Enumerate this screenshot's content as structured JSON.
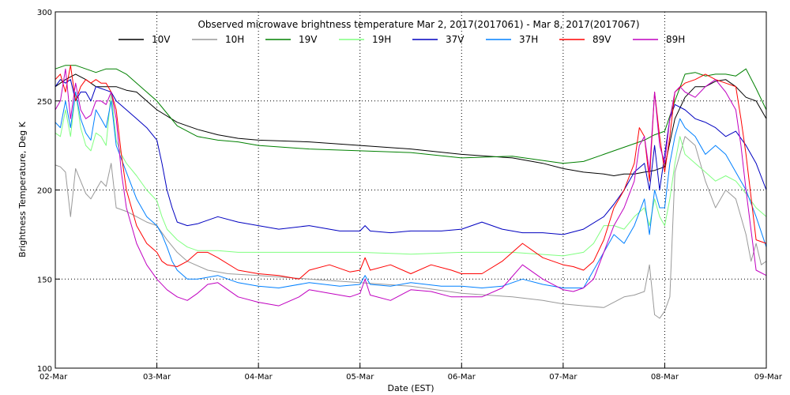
{
  "chart_data": {
    "type": "line",
    "title": "Observed microwave brightness temperature Mar  2, 2017(2017061) - Mar  8, 2017(2017067)",
    "xlabel": "Date (EST)",
    "ylabel": "Brightness Temperature, Deg K",
    "xlim": [
      0,
      7
    ],
    "ylim": [
      100,
      300
    ],
    "x_ticks": [
      {
        "value": 0,
        "label": "02-Mar"
      },
      {
        "value": 1,
        "label": "03-Mar"
      },
      {
        "value": 2,
        "label": "04-Mar"
      },
      {
        "value": 3,
        "label": "05-Mar"
      },
      {
        "value": 4,
        "label": "06-Mar"
      },
      {
        "value": 5,
        "label": "07-Mar"
      },
      {
        "value": 6,
        "label": "08-Mar"
      },
      {
        "value": 7,
        "label": "09-Mar"
      }
    ],
    "y_ticks": [
      {
        "value": 100,
        "label": "100"
      },
      {
        "value": 150,
        "label": "150"
      },
      {
        "value": 200,
        "label": "200"
      },
      {
        "value": 250,
        "label": "250"
      },
      {
        "value": 300,
        "label": "300"
      }
    ],
    "grid": "dotted",
    "legend_position": "top",
    "series": [
      {
        "name": "10V",
        "color": "#000000",
        "x": [
          0,
          0.1,
          0.2,
          0.3,
          0.4,
          0.5,
          0.6,
          0.7,
          0.8,
          0.9,
          1,
          1.2,
          1.4,
          1.6,
          1.8,
          2,
          2.5,
          3,
          3.5,
          4,
          4.5,
          4.8,
          5,
          5.2,
          5.4,
          5.5,
          5.6,
          5.7,
          5.8,
          5.9,
          6,
          6.1,
          6.2,
          6.3,
          6.4,
          6.5,
          6.6,
          6.7,
          6.8,
          6.9,
          7
        ],
        "y": [
          258,
          262,
          265,
          262,
          258,
          258,
          258,
          256,
          255,
          250,
          245,
          238,
          234,
          231,
          229,
          228,
          227,
          225,
          223,
          220,
          218,
          215,
          212,
          210,
          209,
          208,
          209,
          209,
          210,
          211,
          213,
          240,
          252,
          258,
          258,
          261,
          262,
          258,
          252,
          250,
          240
        ]
      },
      {
        "name": "10H",
        "color": "#999999",
        "x": [
          0,
          0.05,
          0.1,
          0.15,
          0.2,
          0.25,
          0.3,
          0.35,
          0.4,
          0.45,
          0.5,
          0.55,
          0.6,
          0.7,
          0.8,
          0.9,
          1,
          1.1,
          1.2,
          1.3,
          1.5,
          1.7,
          2,
          2.5,
          3,
          3.5,
          4,
          4.5,
          4.8,
          5,
          5.2,
          5.4,
          5.5,
          5.6,
          5.7,
          5.8,
          5.85,
          5.9,
          5.95,
          6,
          6.05,
          6.1,
          6.2,
          6.3,
          6.4,
          6.5,
          6.6,
          6.7,
          6.8,
          6.85,
          6.9,
          6.95,
          7
        ],
        "y": [
          214,
          213,
          210,
          185,
          212,
          205,
          198,
          195,
          200,
          205,
          202,
          215,
          190,
          188,
          185,
          182,
          180,
          172,
          165,
          160,
          155,
          153,
          152,
          150,
          148,
          146,
          142,
          140,
          138,
          136,
          135,
          134,
          137,
          140,
          141,
          143,
          158,
          130,
          128,
          132,
          140,
          210,
          230,
          225,
          205,
          190,
          200,
          195,
          175,
          160,
          170,
          158,
          160
        ]
      },
      {
        "name": "19V",
        "color": "#008000",
        "x": [
          0,
          0.1,
          0.2,
          0.3,
          0.4,
          0.5,
          0.6,
          0.7,
          0.8,
          0.9,
          1,
          1.1,
          1.2,
          1.4,
          1.6,
          1.8,
          2,
          2.5,
          3,
          3.5,
          4,
          4.5,
          5,
          5.2,
          5.4,
          5.5,
          5.6,
          5.7,
          5.8,
          5.9,
          6,
          6.1,
          6.2,
          6.3,
          6.4,
          6.5,
          6.6,
          6.7,
          6.8,
          6.9,
          7
        ],
        "y": [
          268,
          270,
          270,
          268,
          266,
          268,
          268,
          265,
          260,
          255,
          250,
          243,
          236,
          230,
          228,
          227,
          225,
          223,
          222,
          221,
          218,
          219,
          215,
          216,
          220,
          222,
          224,
          226,
          228,
          231,
          233,
          250,
          265,
          266,
          264,
          265,
          265,
          264,
          268,
          257,
          245
        ]
      },
      {
        "name": "19H",
        "color": "#80ff80",
        "x": [
          0,
          0.05,
          0.1,
          0.15,
          0.2,
          0.25,
          0.3,
          0.35,
          0.4,
          0.45,
          0.5,
          0.55,
          0.6,
          0.65,
          0.7,
          0.8,
          0.9,
          1,
          1.05,
          1.1,
          1.15,
          1.2,
          1.3,
          1.4,
          1.6,
          1.8,
          2,
          2.5,
          3,
          3.5,
          4,
          4.5,
          5,
          5.2,
          5.3,
          5.4,
          5.5,
          5.6,
          5.7,
          5.8,
          5.85,
          5.9,
          5.95,
          6,
          6.05,
          6.1,
          6.15,
          6.2,
          6.3,
          6.4,
          6.5,
          6.6,
          6.7,
          6.8,
          6.9,
          7
        ],
        "y": [
          232,
          230,
          245,
          230,
          255,
          235,
          225,
          222,
          232,
          230,
          225,
          255,
          228,
          220,
          215,
          208,
          200,
          194,
          185,
          178,
          175,
          172,
          168,
          166,
          166,
          165,
          165,
          165,
          165,
          164,
          165,
          165,
          163,
          165,
          170,
          180,
          180,
          178,
          185,
          190,
          180,
          195,
          185,
          180,
          195,
          215,
          230,
          220,
          215,
          210,
          205,
          208,
          205,
          198,
          190,
          185
        ]
      },
      {
        "name": "37V",
        "color": "#0000c0",
        "x": [
          0,
          0.05,
          0.1,
          0.15,
          0.2,
          0.25,
          0.3,
          0.35,
          0.4,
          0.45,
          0.5,
          0.55,
          0.6,
          0.7,
          0.8,
          0.9,
          1,
          1.05,
          1.1,
          1.15,
          1.2,
          1.3,
          1.4,
          1.6,
          1.8,
          2,
          2.2,
          2.5,
          2.8,
          3,
          3.05,
          3.1,
          3.3,
          3.5,
          3.8,
          4,
          4.2,
          4.4,
          4.6,
          4.8,
          5,
          5.2,
          5.4,
          5.5,
          5.6,
          5.7,
          5.8,
          5.85,
          5.9,
          5.95,
          6,
          6.05,
          6.1,
          6.2,
          6.3,
          6.4,
          6.5,
          6.6,
          6.7,
          6.8,
          6.9,
          7
        ],
        "y": [
          258,
          262,
          260,
          262,
          250,
          255,
          255,
          250,
          258,
          257,
          256,
          255,
          250,
          245,
          240,
          235,
          228,
          215,
          200,
          190,
          182,
          180,
          181,
          185,
          182,
          180,
          178,
          180,
          177,
          177,
          180,
          177,
          176,
          177,
          177,
          178,
          182,
          178,
          176,
          176,
          175,
          178,
          185,
          192,
          200,
          210,
          215,
          200,
          225,
          200,
          220,
          240,
          248,
          245,
          240,
          238,
          235,
          230,
          233,
          225,
          215,
          200
        ]
      },
      {
        "name": "37H",
        "color": "#0080ff",
        "x": [
          0,
          0.05,
          0.1,
          0.15,
          0.2,
          0.25,
          0.3,
          0.35,
          0.4,
          0.45,
          0.5,
          0.55,
          0.6,
          0.7,
          0.8,
          0.9,
          1,
          1.05,
          1.1,
          1.15,
          1.2,
          1.3,
          1.4,
          1.6,
          1.8,
          2,
          2.2,
          2.5,
          2.8,
          3,
          3.05,
          3.1,
          3.3,
          3.5,
          3.8,
          4,
          4.2,
          4.4,
          4.6,
          4.8,
          5,
          5.2,
          5.3,
          5.4,
          5.5,
          5.6,
          5.7,
          5.8,
          5.85,
          5.9,
          5.95,
          6,
          6.05,
          6.1,
          6.15,
          6.2,
          6.3,
          6.4,
          6.5,
          6.6,
          6.7,
          6.8,
          6.9,
          7
        ],
        "y": [
          238,
          235,
          250,
          235,
          255,
          240,
          232,
          228,
          245,
          240,
          235,
          250,
          225,
          210,
          195,
          185,
          180,
          175,
          168,
          160,
          155,
          150,
          150,
          152,
          148,
          146,
          145,
          148,
          146,
          147,
          152,
          147,
          146,
          148,
          146,
          146,
          145,
          146,
          150,
          147,
          145,
          145,
          155,
          165,
          175,
          170,
          180,
          195,
          175,
          200,
          190,
          190,
          215,
          230,
          240,
          235,
          230,
          220,
          225,
          220,
          210,
          200,
          185,
          168
        ]
      },
      {
        "name": "89V",
        "color": "#ff0000",
        "x": [
          0,
          0.05,
          0.1,
          0.15,
          0.2,
          0.25,
          0.3,
          0.35,
          0.4,
          0.45,
          0.5,
          0.55,
          0.6,
          0.65,
          0.7,
          0.8,
          0.9,
          1,
          1.05,
          1.1,
          1.2,
          1.3,
          1.4,
          1.5,
          1.6,
          1.8,
          2,
          2.2,
          2.4,
          2.5,
          2.7,
          2.9,
          3,
          3.05,
          3.1,
          3.3,
          3.5,
          3.7,
          3.9,
          4,
          4.2,
          4.4,
          4.6,
          4.8,
          5,
          5.1,
          5.2,
          5.3,
          5.4,
          5.5,
          5.6,
          5.7,
          5.75,
          5.8,
          5.85,
          5.9,
          5.95,
          6,
          6.05,
          6.1,
          6.2,
          6.3,
          6.4,
          6.5,
          6.6,
          6.7,
          6.75,
          6.8,
          6.9,
          7
        ],
        "y": [
          262,
          265,
          255,
          270,
          250,
          258,
          262,
          260,
          262,
          260,
          260,
          255,
          245,
          220,
          200,
          180,
          170,
          165,
          160,
          158,
          157,
          160,
          165,
          165,
          162,
          155,
          153,
          152,
          150,
          155,
          158,
          154,
          155,
          162,
          155,
          158,
          153,
          158,
          155,
          153,
          153,
          160,
          170,
          162,
          158,
          157,
          155,
          160,
          172,
          190,
          200,
          215,
          235,
          230,
          205,
          255,
          230,
          210,
          230,
          255,
          260,
          262,
          265,
          262,
          260,
          258,
          240,
          220,
          172,
          170
        ]
      },
      {
        "name": "89H",
        "color": "#c000c0",
        "x": [
          0,
          0.05,
          0.1,
          0.15,
          0.2,
          0.25,
          0.3,
          0.35,
          0.4,
          0.45,
          0.5,
          0.55,
          0.6,
          0.65,
          0.7,
          0.8,
          0.9,
          1,
          1.1,
          1.2,
          1.3,
          1.4,
          1.5,
          1.6,
          1.8,
          2,
          2.2,
          2.4,
          2.5,
          2.7,
          2.9,
          3,
          3.05,
          3.1,
          3.3,
          3.5,
          3.7,
          3.9,
          4,
          4.2,
          4.4,
          4.6,
          4.8,
          5,
          5.1,
          5.2,
          5.3,
          5.4,
          5.5,
          5.6,
          5.7,
          5.75,
          5.8,
          5.85,
          5.9,
          5.95,
          6,
          6.05,
          6.1,
          6.15,
          6.2,
          6.3,
          6.4,
          6.5,
          6.6,
          6.7,
          6.75,
          6.8,
          6.9,
          7
        ],
        "y": [
          245,
          250,
          268,
          240,
          260,
          245,
          240,
          242,
          250,
          250,
          248,
          255,
          240,
          210,
          190,
          170,
          158,
          150,
          144,
          140,
          138,
          142,
          147,
          148,
          140,
          137,
          135,
          140,
          144,
          142,
          140,
          142,
          150,
          141,
          138,
          144,
          143,
          140,
          140,
          140,
          145,
          158,
          150,
          144,
          143,
          145,
          150,
          165,
          180,
          190,
          205,
          225,
          230,
          210,
          255,
          225,
          215,
          240,
          255,
          258,
          255,
          252,
          258,
          262,
          255,
          245,
          225,
          200,
          155,
          152
        ]
      }
    ]
  }
}
